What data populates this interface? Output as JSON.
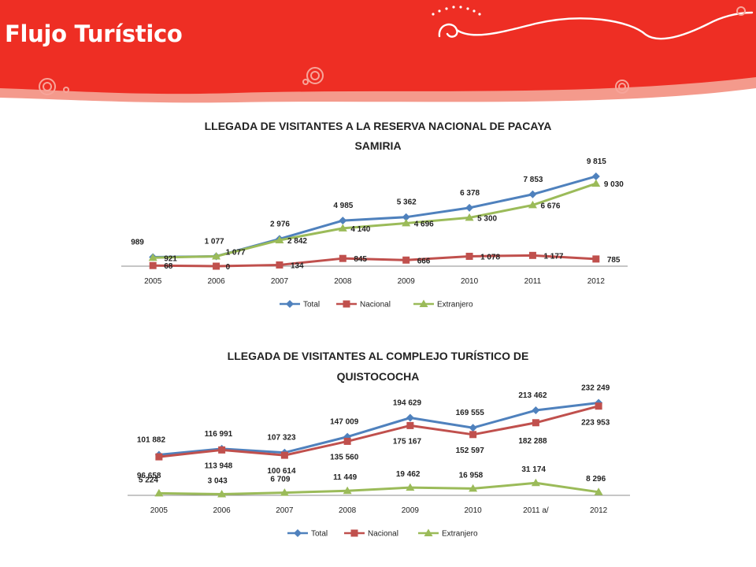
{
  "page": {
    "title": "Flujo Turístico"
  },
  "colors": {
    "header_red": "#EE2E24",
    "header_pink": "#F49A8C",
    "total": "#4F81BD",
    "nacional": "#C0504D",
    "extranjero": "#9BBB59"
  },
  "chart_data": [
    {
      "type": "line",
      "title_lines": [
        "LLEGADA DE VISITANTES A LA RESERVA NACIONAL DE PACAYA",
        "SAMIRIA"
      ],
      "categories": [
        "2005",
        "2006",
        "2007",
        "2008",
        "2009",
        "2010",
        "2011",
        "2012"
      ],
      "series": [
        {
          "name": "Total",
          "values": [
            989,
            1077,
            2976,
            4985,
            5362,
            6378,
            7853,
            9815
          ],
          "labels": [
            "989",
            "1 077",
            "2 976",
            "4 985",
            "5 362",
            "6 378",
            "7 853",
            "9 815"
          ]
        },
        {
          "name": "Nacional",
          "values": [
            68,
            0,
            134,
            845,
            666,
            1078,
            1177,
            785
          ],
          "labels": [
            "68",
            "0",
            "134",
            "845",
            "666",
            "1 078",
            "1 177",
            "785"
          ]
        },
        {
          "name": "Extranjero",
          "values": [
            921,
            1077,
            2842,
            4140,
            4696,
            5300,
            6676,
            9030
          ],
          "labels": [
            "921",
            "1 077",
            "2 842",
            "4 140",
            "4 696",
            "5 300",
            "6 676",
            "9 030"
          ]
        }
      ],
      "ylim": [
        0,
        10500
      ],
      "legend_position": "bottom",
      "grid": false
    },
    {
      "type": "line",
      "title_lines": [
        "LLEGADA DE VISITANTES AL COMPLEJO TURÍSTICO DE",
        "QUISTOCOCHA"
      ],
      "categories": [
        "2005",
        "2006",
        "2007",
        "2008",
        "2009",
        "2010",
        "2011 a/",
        "2012"
      ],
      "series": [
        {
          "name": "Total",
          "values": [
            101882,
            116991,
            107323,
            147009,
            194629,
            169555,
            213462,
            232249
          ],
          "labels": [
            "101 882",
            "116 991",
            "107 323",
            "147 009",
            "194 629",
            "169 555",
            "213 462",
            "232 249"
          ]
        },
        {
          "name": "Nacional",
          "values": [
            96658,
            113948,
            100614,
            135560,
            175167,
            152597,
            182288,
            223953
          ],
          "labels": [
            "96 658",
            "113 948",
            "100 614",
            "135 560",
            "175 167",
            "152 597",
            "182 288",
            "223 953"
          ]
        },
        {
          "name": "Extranjero",
          "values": [
            5224,
            3043,
            6709,
            11449,
            19462,
            16958,
            31174,
            8296
          ],
          "labels": [
            "5 224",
            "3 043",
            "6 709",
            "11 449",
            "19 462",
            "16 958",
            "31 174",
            "8 296"
          ]
        }
      ],
      "ylim": [
        0,
        255000
      ],
      "legend_position": "bottom",
      "grid": false
    }
  ]
}
